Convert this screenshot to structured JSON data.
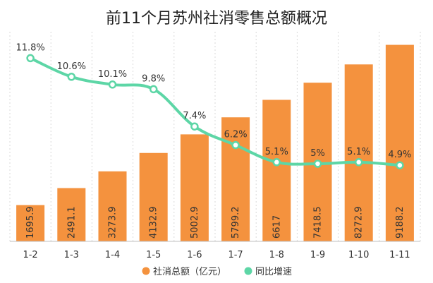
{
  "chart_data": {
    "type": "bar",
    "title": "前11个月苏州社消零售总额概况",
    "categories": [
      "1-2",
      "1-3",
      "1-4",
      "1-5",
      "1-6",
      "1-7",
      "1-8",
      "1-9",
      "1-10",
      "1-11"
    ],
    "series": [
      {
        "name": "社消总额（亿元）",
        "type": "bar",
        "color": "#F4923E",
        "values": [
          1695.9,
          2491.1,
          3273.9,
          4132.9,
          5002.9,
          5799.2,
          6617,
          7418.5,
          8272.9,
          9188.2
        ],
        "labels": [
          "1695.9",
          "2491.1",
          "3273.9",
          "4132.9",
          "5002.9",
          "5799.2",
          "6617",
          "7418.5",
          "8272.9",
          "9188.2"
        ]
      },
      {
        "name": "同比增速",
        "type": "line",
        "color": "#5DD6A6",
        "values": [
          11.8,
          10.6,
          10.1,
          9.8,
          7.4,
          6.2,
          5.1,
          5.0,
          5.1,
          4.9
        ],
        "labels": [
          "11.8%",
          "10.6%",
          "10.1%",
          "9.8%",
          "7.4%",
          "6.2%",
          "5.1%",
          "5%",
          "5.1%",
          "4.9%"
        ]
      }
    ],
    "bar_ylim": [
      0,
      9800
    ],
    "line_ylim": [
      0,
      13.5
    ],
    "grid": "vertical-dotted",
    "legend_position": "bottom"
  }
}
